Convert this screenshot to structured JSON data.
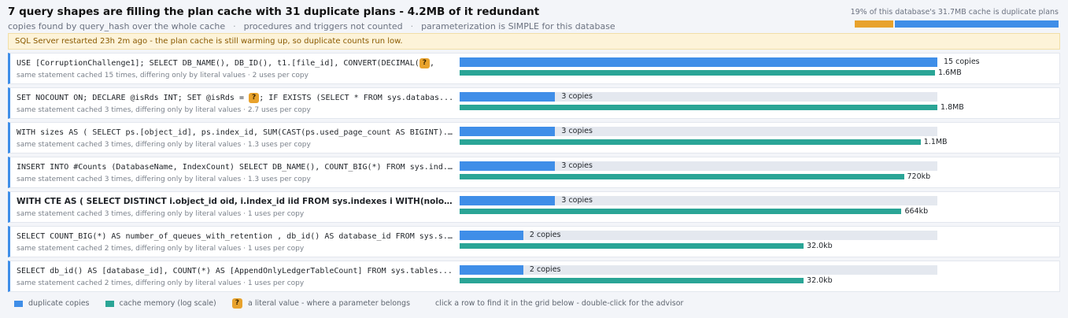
{
  "header": {
    "title": "7 query shapes are filling the plan cache with 31 duplicate plans - 4.2MB of it redundant",
    "subline": [
      "copies found by query_hash over the whole cache",
      "procedures and triggers not counted",
      "parameterization is SIMPLE for this database"
    ],
    "separator": "·"
  },
  "summary": {
    "text": "19% of this database's 31.7MB cache is duplicate plans",
    "duplicate_fraction": 0.19,
    "colors": {
      "duplicate": "#e8a22c",
      "rest": "#3f8ee8"
    }
  },
  "warning": {
    "text": "SQL Server restarted 23h 2m ago - the plan cache is still warming up, so duplicate counts run low."
  },
  "rows": [
    {
      "sql_before": "USE [CorruptionChallenge1]; SELECT DB_NAME(), DB_ID(), t1.[file_id], CONVERT(DECIMAL(",
      "literal": "?",
      "sql_after": ",",
      "prose": false,
      "meta": "same statement cached 15 times, differing only by literal values · 2 uses per copy",
      "copies": 15,
      "copies_label": "15 copies",
      "memory_label": "1.6MB",
      "memory_fraction": 0.995
    },
    {
      "sql_before": "SET NOCOUNT ON; DECLARE @isRds INT; SET @isRds = ",
      "literal": "?",
      "sql_after": "; IF EXISTS (SELECT * FROM sys.databas...",
      "prose": false,
      "meta": "same statement cached 3 times, differing only by literal values · 2.7 uses per copy",
      "copies": 3,
      "copies_label": "3 copies",
      "memory_label": "1.8MB",
      "memory_fraction": 1.0
    },
    {
      "sql_before": "WITH sizes AS ( SELECT ps.[object_id], ps.index_id, SUM(CAST(ps.used_page_count AS BIGINT)...",
      "literal": "",
      "sql_after": "",
      "prose": false,
      "meta": "same statement cached 3 times, differing only by literal values · 1.3 uses per copy",
      "copies": 3,
      "copies_label": "3 copies",
      "memory_label": "1.1MB",
      "memory_fraction": 0.965
    },
    {
      "sql_before": "INSERT INTO #Counts (DatabaseName, IndexCount) SELECT DB_NAME(), COUNT_BIG(*) FROM sys.ind...",
      "literal": "",
      "sql_after": "",
      "prose": false,
      "meta": "same statement cached 3 times, differing only by literal values · 1.3 uses per copy",
      "copies": 3,
      "copies_label": "3 copies",
      "memory_label": "720kb",
      "memory_fraction": 0.93
    },
    {
      "sql_before": "WITH CTE AS ( SELECT DISTINCT i.object_id oid, i.index_id iid FROM sys.indexes i WITH(nolock) JOIN...",
      "literal": "",
      "sql_after": "",
      "prose": true,
      "meta": "same statement cached 3 times, differing only by literal values · 1 uses per copy",
      "copies": 3,
      "copies_label": "3 copies",
      "memory_label": "664kb",
      "memory_fraction": 0.925
    },
    {
      "sql_before": "SELECT COUNT_BIG(*) AS number_of_queues_with_retention , db_id() AS database_id FROM sys.s...",
      "literal": "",
      "sql_after": "",
      "prose": false,
      "meta": "same statement cached 2 times, differing only by literal values · 1 uses per copy",
      "copies": 2,
      "copies_label": "2 copies",
      "memory_label": "32.0kb",
      "memory_fraction": 0.72
    },
    {
      "sql_before": "SELECT db_id() AS [database_id], COUNT(*) AS [AppendOnlyLedgerTableCount] FROM sys.tables...",
      "literal": "",
      "sql_after": "",
      "prose": false,
      "meta": "same statement cached 2 times, differing only by literal values · 1 uses per copy",
      "copies": 2,
      "copies_label": "2 copies",
      "memory_label": "32.0kb",
      "memory_fraction": 0.72
    }
  ],
  "scale": {
    "max_copies": 15
  },
  "legend": {
    "copies": "duplicate copies",
    "memory": "cache memory (log scale)",
    "literal_glyph": "?",
    "literal": "a literal value - where a parameter belongs",
    "hint": "click a row to find it in the grid below - double-click for the advisor"
  },
  "colors": {
    "copies": "#3f8ee8",
    "memory": "#2aa596",
    "literal": "#e8a22c",
    "track": "#e4e8ef"
  }
}
